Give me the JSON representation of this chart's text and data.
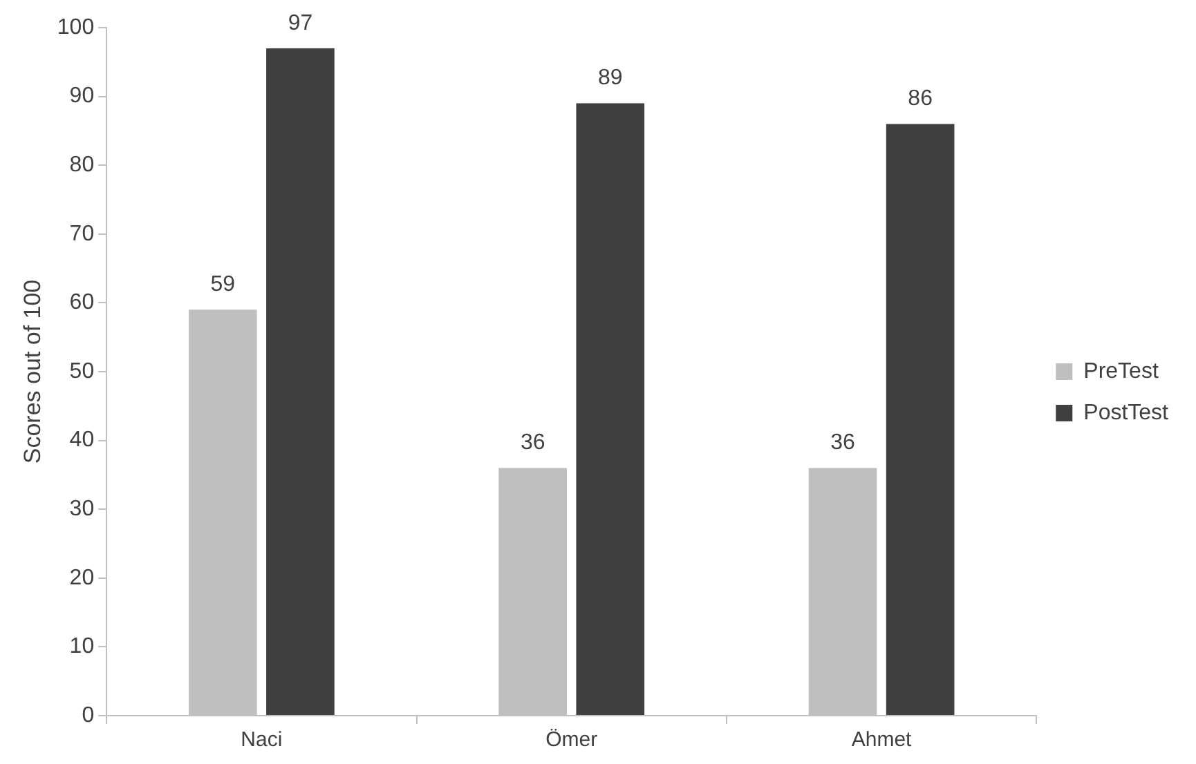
{
  "chart_data": {
    "type": "bar",
    "ylabel": "Scores out of 100",
    "categories": [
      "Naci",
      "Ömer",
      "Ahmet"
    ],
    "series": [
      {
        "name": "PreTest",
        "color": "#bfbfbf",
        "values": [
          59,
          36,
          36
        ]
      },
      {
        "name": "PostTest",
        "color": "#404040",
        "values": [
          97,
          89,
          86
        ]
      }
    ],
    "ylim": [
      0,
      100
    ],
    "yticks": [
      0,
      10,
      20,
      30,
      40,
      50,
      60,
      70,
      80,
      90,
      100
    ],
    "grid": false,
    "legend": "right",
    "data_labels": true
  }
}
